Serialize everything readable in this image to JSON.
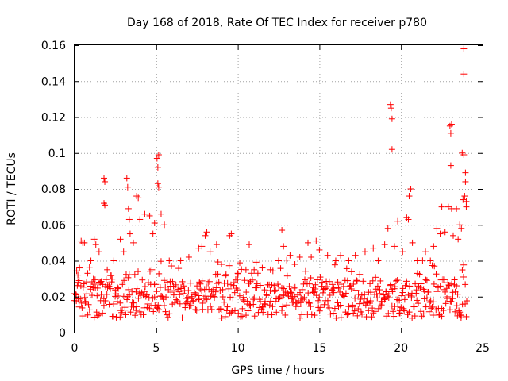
{
  "chart_data": {
    "type": "scatter",
    "title": "Day 168 of 2018, Rate Of TEC Index for receiver p780",
    "xlabel": "GPS time / hours",
    "ylabel": "ROTI / TECUs",
    "xlim": [
      0,
      25
    ],
    "ylim": [
      0,
      0.16
    ],
    "x_ticks": [
      0,
      5,
      10,
      15,
      20,
      25
    ],
    "x_tick_labels": [
      "0",
      "5",
      "10",
      "15",
      "20",
      "25"
    ],
    "y_ticks": [
      0,
      0.02,
      0.04,
      0.06,
      0.08,
      0.1,
      0.12,
      0.14,
      0.16
    ],
    "y_tick_labels": [
      "0",
      "0.02",
      "0.04",
      "0.06",
      "0.08",
      "0.1",
      "0.12",
      "0.14",
      "0.16"
    ],
    "grid": true,
    "marker": "+",
    "color": "#ff0000",
    "series": [
      {
        "points": [
          [
            0.1,
            0.021
          ],
          [
            0.2,
            0.032
          ],
          [
            0.3,
            0.036
          ],
          [
            0.4,
            0.051
          ],
          [
            0.5,
            0.05
          ],
          [
            0.6,
            0.05
          ],
          [
            0.8,
            0.033
          ],
          [
            1.0,
            0.04
          ],
          [
            1.2,
            0.052
          ],
          [
            1.3,
            0.049
          ],
          [
            1.5,
            0.045
          ],
          [
            1.8,
            0.086
          ],
          [
            1.85,
            0.084
          ],
          [
            1.8,
            0.072
          ],
          [
            1.85,
            0.071
          ],
          [
            2.0,
            0.035
          ],
          [
            2.4,
            0.04
          ],
          [
            2.8,
            0.052
          ],
          [
            3.0,
            0.045
          ],
          [
            3.2,
            0.086
          ],
          [
            3.25,
            0.081
          ],
          [
            3.3,
            0.069
          ],
          [
            3.35,
            0.063
          ],
          [
            3.4,
            0.055
          ],
          [
            3.6,
            0.05
          ],
          [
            3.8,
            0.076
          ],
          [
            3.9,
            0.075
          ],
          [
            4.0,
            0.063
          ],
          [
            4.3,
            0.066
          ],
          [
            4.5,
            0.066
          ],
          [
            4.6,
            0.065
          ],
          [
            4.8,
            0.055
          ],
          [
            4.9,
            0.061
          ],
          [
            5.05,
            0.097
          ],
          [
            5.1,
            0.092
          ],
          [
            5.15,
            0.099
          ],
          [
            5.1,
            0.083
          ],
          [
            5.15,
            0.081
          ],
          [
            5.3,
            0.066
          ],
          [
            5.5,
            0.06
          ],
          [
            5.8,
            0.04
          ],
          [
            6.5,
            0.04
          ],
          [
            7.0,
            0.042
          ],
          [
            7.6,
            0.047
          ],
          [
            7.8,
            0.048
          ],
          [
            8.0,
            0.054
          ],
          [
            8.1,
            0.056
          ],
          [
            8.3,
            0.045
          ],
          [
            8.7,
            0.049
          ],
          [
            9.0,
            0.038
          ],
          [
            9.5,
            0.054
          ],
          [
            9.6,
            0.055
          ],
          [
            10.0,
            0.033
          ],
          [
            10.5,
            0.035
          ],
          [
            10.7,
            0.049
          ],
          [
            11.0,
            0.035
          ],
          [
            11.5,
            0.036
          ],
          [
            12.0,
            0.035
          ],
          [
            12.5,
            0.04
          ],
          [
            12.7,
            0.057
          ],
          [
            12.8,
            0.048
          ],
          [
            13.2,
            0.043
          ],
          [
            13.5,
            0.038
          ],
          [
            13.8,
            0.042
          ],
          [
            14.3,
            0.05
          ],
          [
            14.5,
            0.042
          ],
          [
            14.8,
            0.051
          ],
          [
            15.0,
            0.046
          ],
          [
            15.5,
            0.043
          ],
          [
            16.0,
            0.04
          ],
          [
            16.3,
            0.043
          ],
          [
            16.8,
            0.04
          ],
          [
            17.2,
            0.043
          ],
          [
            17.8,
            0.045
          ],
          [
            18.3,
            0.047
          ],
          [
            18.6,
            0.04
          ],
          [
            19.0,
            0.049
          ],
          [
            19.2,
            0.058
          ],
          [
            19.35,
            0.127
          ],
          [
            19.4,
            0.125
          ],
          [
            19.45,
            0.119
          ],
          [
            19.45,
            0.102
          ],
          [
            19.6,
            0.048
          ],
          [
            19.8,
            0.062
          ],
          [
            20.1,
            0.045
          ],
          [
            20.35,
            0.064
          ],
          [
            20.45,
            0.063
          ],
          [
            20.5,
            0.076
          ],
          [
            20.6,
            0.08
          ],
          [
            20.7,
            0.05
          ],
          [
            21.0,
            0.04
          ],
          [
            21.5,
            0.045
          ],
          [
            21.8,
            0.04
          ],
          [
            22.0,
            0.048
          ],
          [
            22.2,
            0.058
          ],
          [
            22.4,
            0.055
          ],
          [
            22.5,
            0.07
          ],
          [
            22.7,
            0.056
          ],
          [
            22.9,
            0.07
          ],
          [
            23.0,
            0.115
          ],
          [
            23.05,
            0.111
          ],
          [
            23.1,
            0.116
          ],
          [
            23.05,
            0.093
          ],
          [
            23.1,
            0.069
          ],
          [
            23.2,
            0.054
          ],
          [
            23.4,
            0.069
          ],
          [
            23.5,
            0.052
          ],
          [
            23.6,
            0.06
          ],
          [
            23.7,
            0.058
          ],
          [
            23.75,
            0.1
          ],
          [
            23.8,
            0.074
          ],
          [
            23.85,
            0.158
          ],
          [
            23.85,
            0.144
          ],
          [
            23.85,
            0.099
          ],
          [
            23.9,
            0.076
          ],
          [
            23.95,
            0.089
          ],
          [
            23.95,
            0.084
          ],
          [
            24.0,
            0.07
          ],
          [
            24.0,
            0.073
          ]
        ]
      }
    ]
  }
}
